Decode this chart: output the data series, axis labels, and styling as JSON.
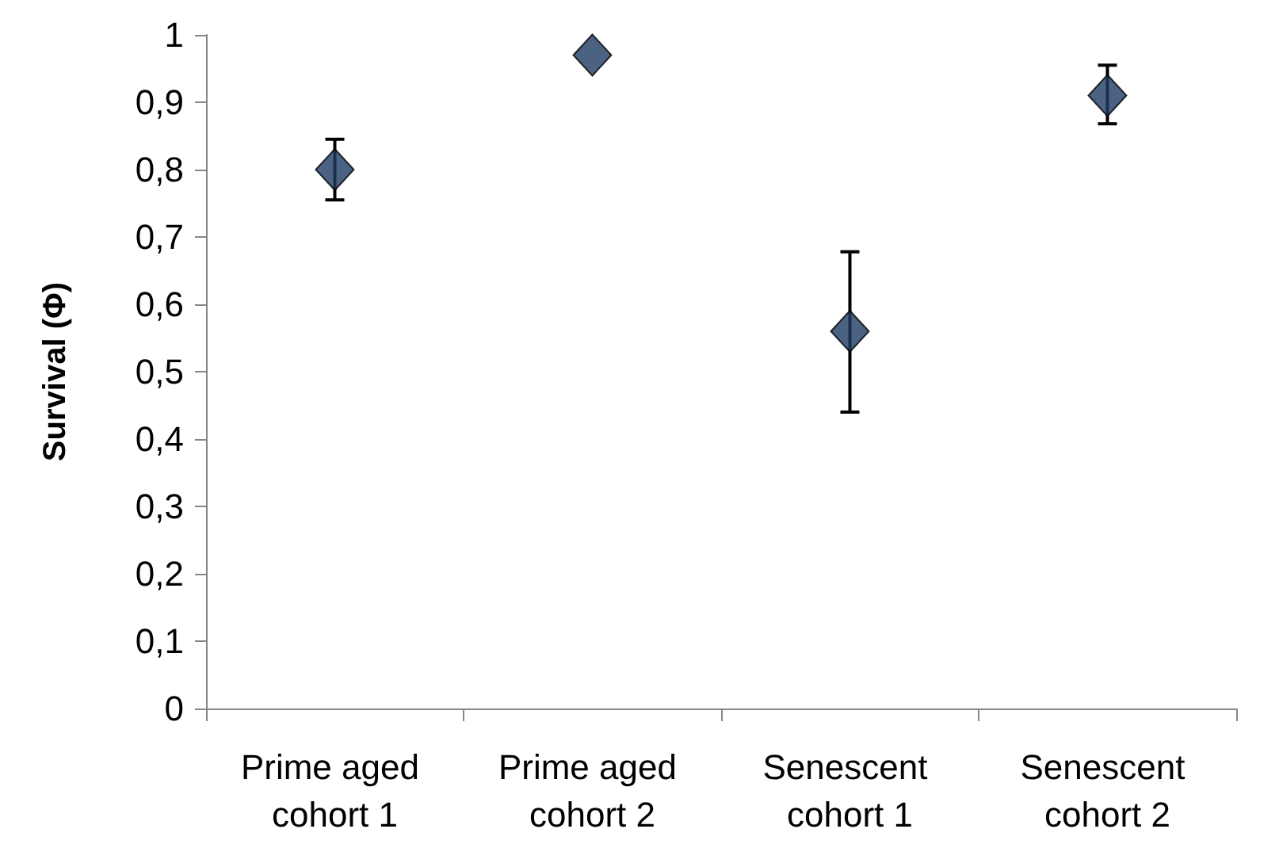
{
  "chart_data": {
    "type": "scatter",
    "ylabel": "Survival (Φ)",
    "categories": [
      "Prime aged cohort 1",
      "Prime aged cohort 2",
      "Senescent cohort 1",
      "Senescent cohort 2"
    ],
    "values": [
      0.8,
      0.97,
      0.56,
      0.91
    ],
    "errors": [
      [
        0.755,
        0.845
      ],
      null,
      [
        0.44,
        0.678
      ],
      [
        0.868,
        0.955
      ]
    ],
    "color": "#1f3b64",
    "marker": "diamond",
    "grid": false,
    "ylim": [
      0,
      1
    ],
    "yticks": [
      0,
      {
        "value": 0.1,
        "label": "0,1"
      },
      {
        "value": 0.2,
        "label": "0,2"
      },
      {
        "value": 0.3,
        "label": "0,3"
      },
      {
        "value": 0.4,
        "label": "0,4"
      },
      {
        "value": 0.5,
        "label": "0,5"
      },
      {
        "value": 0.6,
        "label": "0,6"
      },
      {
        "value": 0.7,
        "label": "0,7"
      },
      {
        "value": 0.8,
        "label": "0,8"
      },
      {
        "value": 0.9,
        "label": "0,9"
      },
      1
    ]
  }
}
